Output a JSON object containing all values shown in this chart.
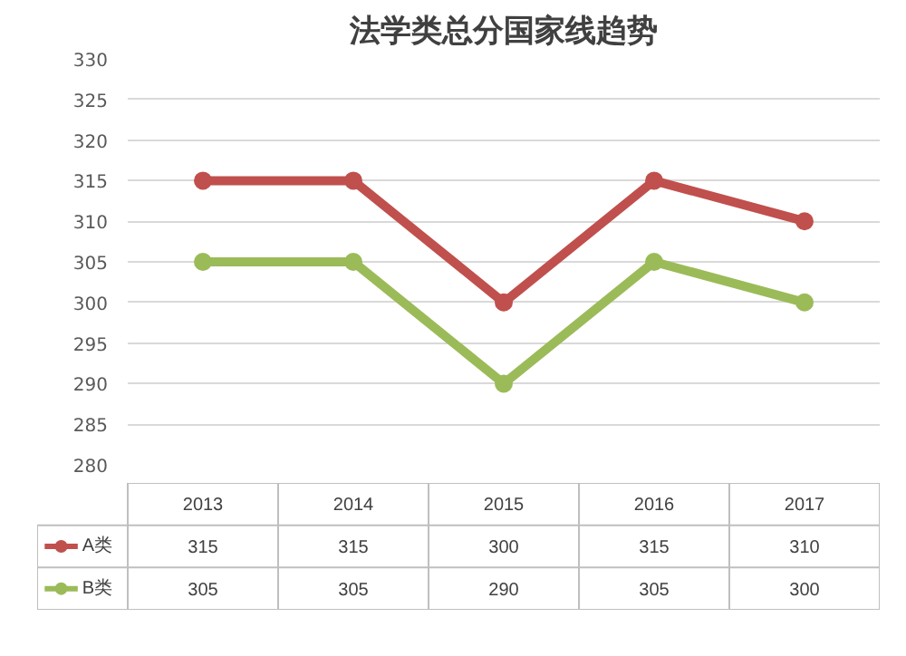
{
  "chart_data": {
    "type": "line",
    "title": "法学类总分国家线趋势",
    "categories": [
      "2013",
      "2014",
      "2015",
      "2016",
      "2017"
    ],
    "series": [
      {
        "name": "A类",
        "color": "#c0504d",
        "values": [
          315,
          315,
          300,
          315,
          310
        ]
      },
      {
        "name": "B类",
        "color": "#9bbb59",
        "values": [
          305,
          305,
          290,
          305,
          300
        ]
      }
    ],
    "ylim": [
      280,
      330
    ],
    "yticks": [
      280,
      285,
      290,
      295,
      300,
      305,
      310,
      315,
      320,
      325,
      330
    ],
    "grid": "y",
    "marker": "circle",
    "line_style": "solid",
    "legend": "bottom",
    "data_labels": true
  }
}
